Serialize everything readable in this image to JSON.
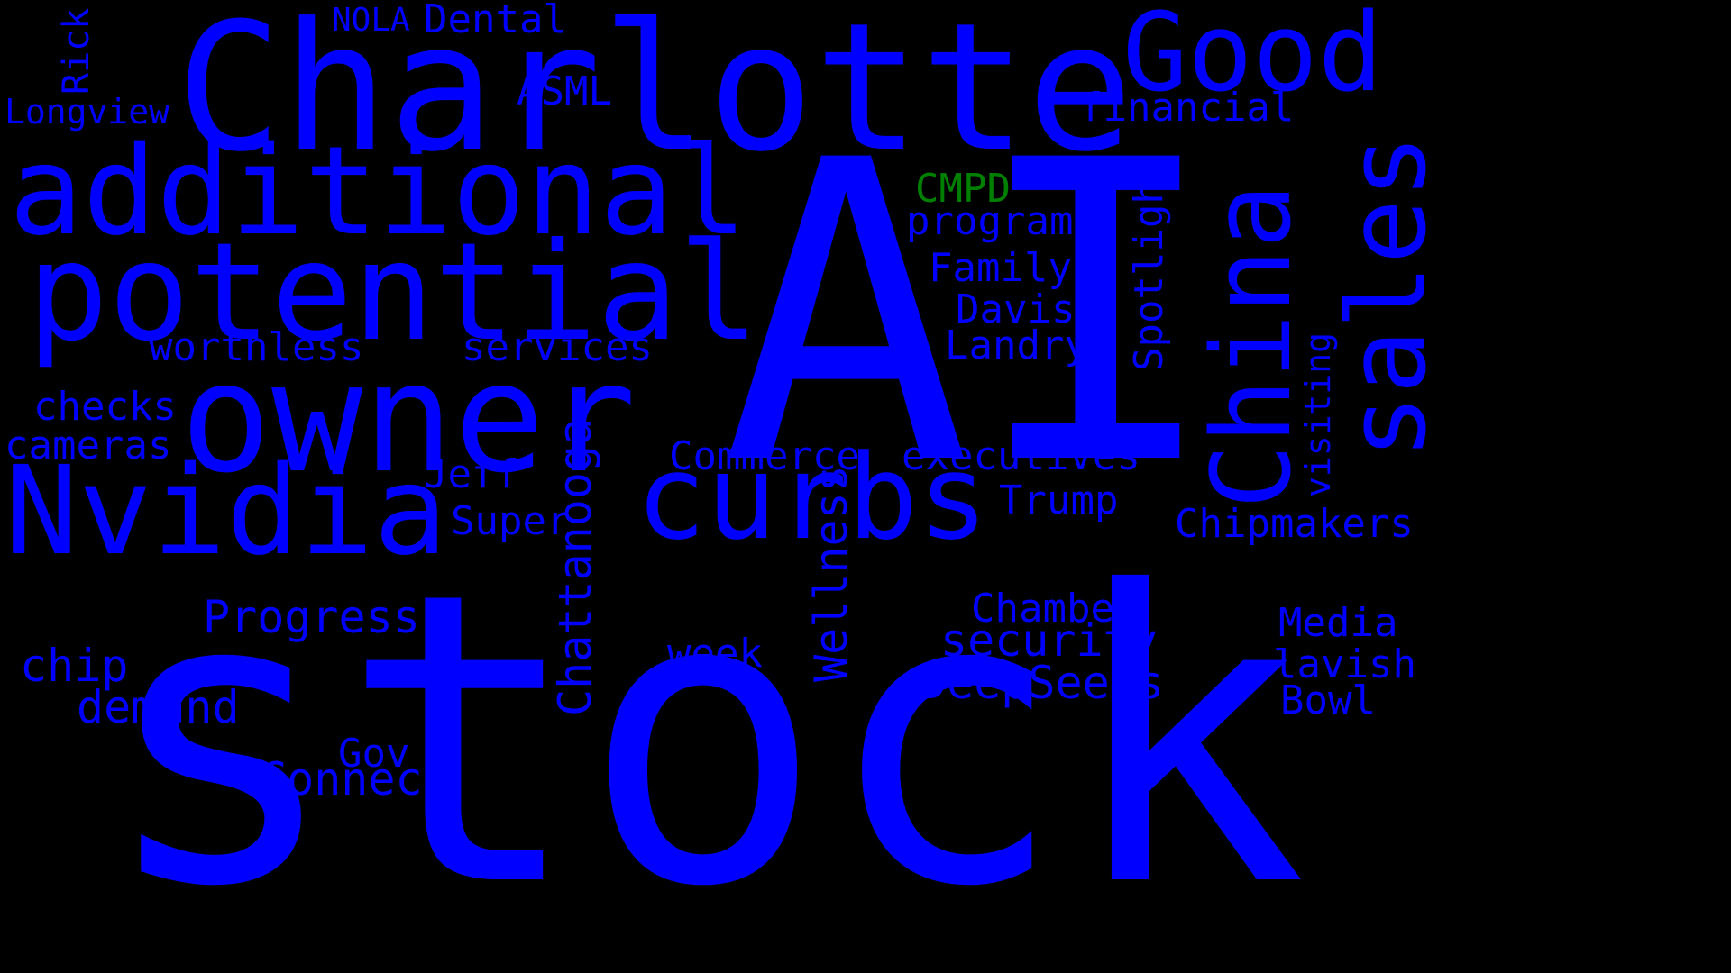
{
  "colors": {
    "background": "#000000",
    "primary_word": "#0000FF",
    "accent_word": "#008000"
  },
  "words": {
    "stock": "stock",
    "ai": "AI",
    "charlotte": "Charlotte",
    "owner": "owner",
    "potential": "potential",
    "additional": "additional",
    "nvidia": "Nvidia",
    "curbs": "curbs",
    "china": "China",
    "sales": "sales",
    "good": "Good",
    "rick": "Rick",
    "nola": "NOLA",
    "dental": "Dental",
    "asml": "ASML",
    "longview": "Longview",
    "financial": "financial",
    "cmpd": "CMPD",
    "program": "program",
    "family": "Family",
    "davis": "Davis",
    "landry": "Landry",
    "spotlight": "Spotlight",
    "worthless": "worthless",
    "services": "services",
    "checks": "checks",
    "cameras": "cameras",
    "commerce": "Commerce",
    "executives": "executives",
    "visiting": "visiting",
    "jeff": "Jeff",
    "trump": "Trump",
    "super": "Super",
    "chattanooga": "Chattanooga",
    "chipmakers": "Chipmakers",
    "progress": "Progress",
    "wellness": "Wellness",
    "chamber": "Chamber",
    "security": "security",
    "media": "Media",
    "chip": "chip",
    "week": "week",
    "lavish": "lavish",
    "deepseeks": "DeepSeeks",
    "demand": "demand",
    "bowl": "Bowl",
    "gov": "Gov",
    "connect": "Connect"
  }
}
